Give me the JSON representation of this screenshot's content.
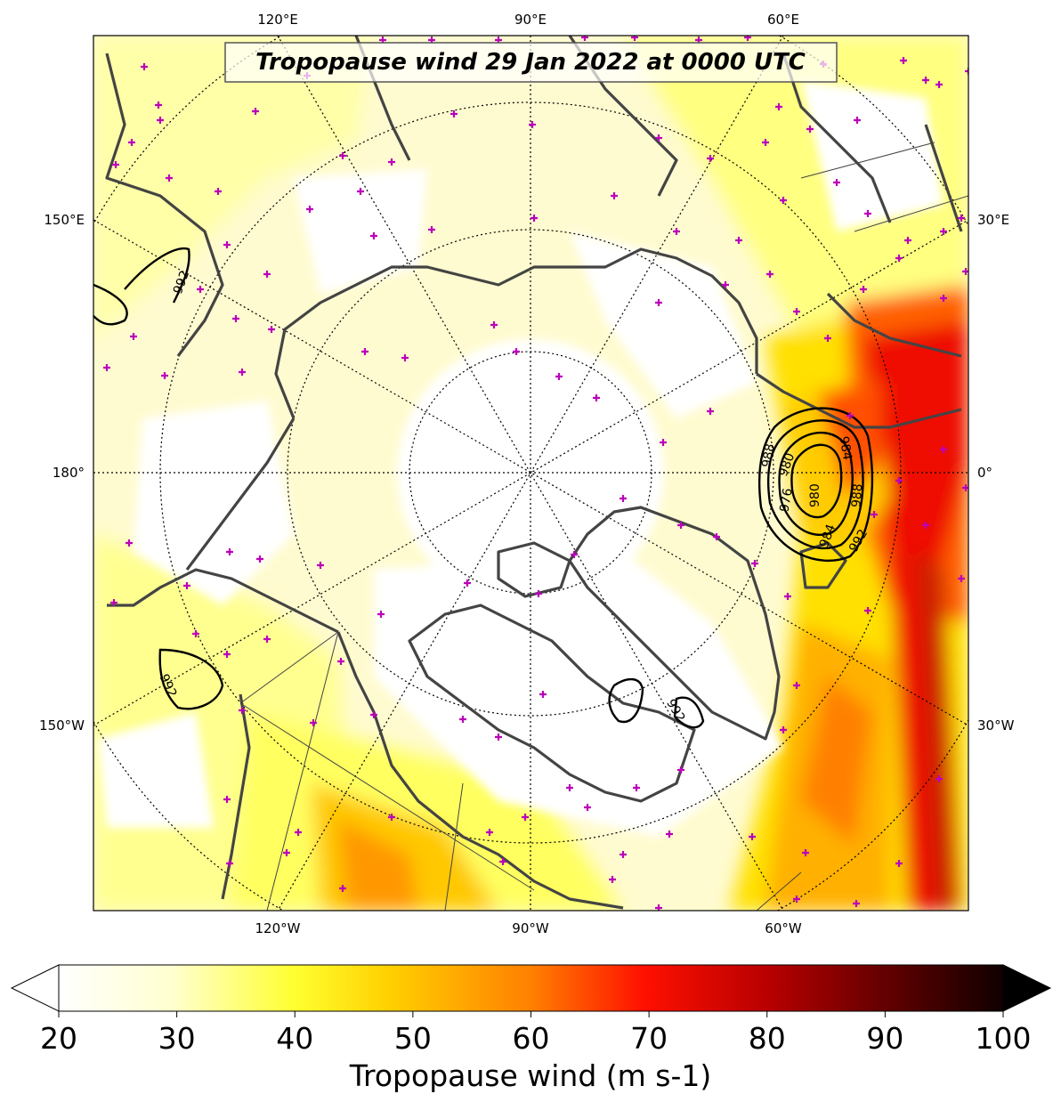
{
  "title": "Tropopause wind 29 Jan 2022 at 0000 UTC",
  "longitude_labels": {
    "top": [
      "120°E",
      "90°E",
      "60°E"
    ],
    "bottom": [
      "120°W",
      "90°W",
      "60°W"
    ],
    "left": [
      "150°E",
      "180°",
      "150°W"
    ],
    "right": [
      "30°E",
      "0°",
      "30°W"
    ]
  },
  "colorbar": {
    "label": "Tropopause wind (m s-1)",
    "ticks": [
      "20",
      "30",
      "40",
      "50",
      "60",
      "70",
      "80",
      "90",
      "100"
    ],
    "min": 20,
    "max": 100,
    "extend": "both",
    "colormap": "hot_r"
  },
  "pressure_contours": {
    "labels": [
      "992",
      "988",
      "984",
      "980",
      "976",
      "980",
      "984",
      "988",
      "992",
      "992",
      "992"
    ],
    "color": "#000000"
  },
  "colors": {
    "coastline": "#444444",
    "markers": "#bb00bb",
    "gridlines": "#000000"
  }
}
